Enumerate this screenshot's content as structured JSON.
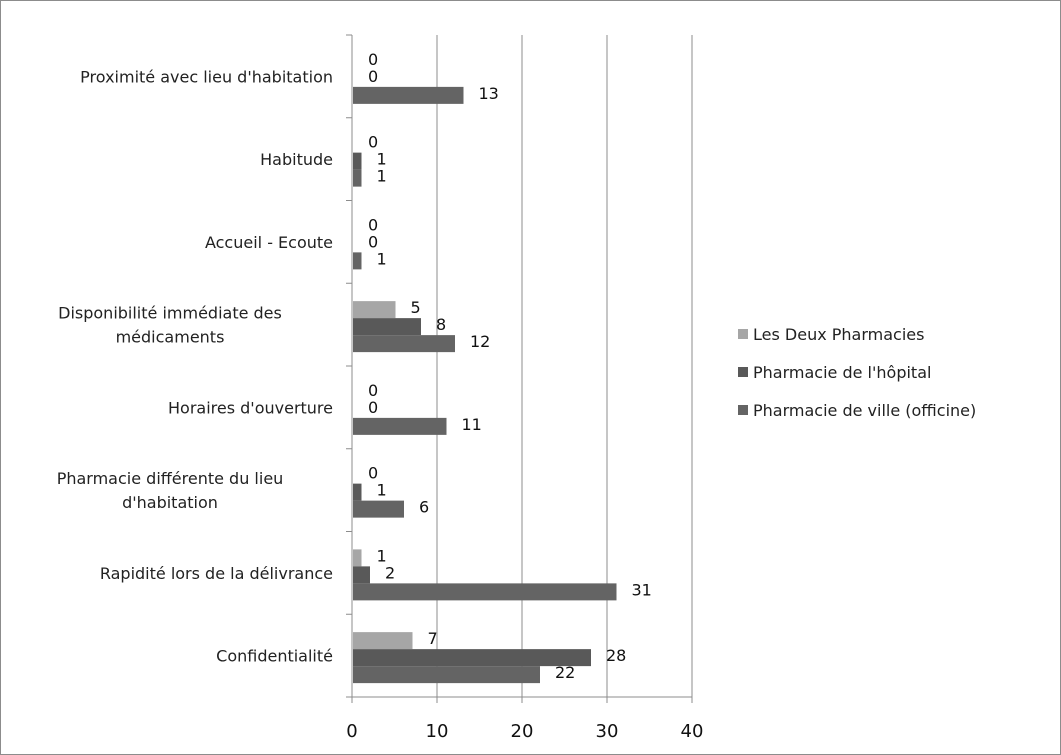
{
  "chart_data": {
    "type": "bar",
    "orientation": "horizontal",
    "categories": [
      [
        "Proximité avec lieu d'habitation"
      ],
      [
        "Habitude"
      ],
      [
        "Accueil - Ecoute"
      ],
      [
        "Disponibilité immédiate des",
        "médicaments"
      ],
      [
        "Horaires d'ouverture"
      ],
      [
        "Pharmacie différente du lieu",
        "d'habitation"
      ],
      [
        "Rapidité lors de la délivrance"
      ],
      [
        "Confidentialité"
      ]
    ],
    "series": [
      {
        "name": "Les Deux Pharmacies",
        "color": "#a6a6a6",
        "values": [
          0,
          0,
          0,
          5,
          0,
          0,
          1,
          7
        ]
      },
      {
        "name": "Pharmacie de l'hôpital",
        "color": "#595959",
        "values": [
          0,
          1,
          0,
          8,
          0,
          1,
          2,
          28
        ]
      },
      {
        "name": "Pharmacie de ville (officine)",
        "color": "#646464",
        "values": [
          13,
          1,
          1,
          12,
          11,
          6,
          31,
          22
        ]
      }
    ],
    "xlim": [
      0,
      40
    ],
    "xticks": [
      "0",
      "10",
      "20",
      "30",
      "40"
    ],
    "grid": true,
    "legend": "right"
  }
}
